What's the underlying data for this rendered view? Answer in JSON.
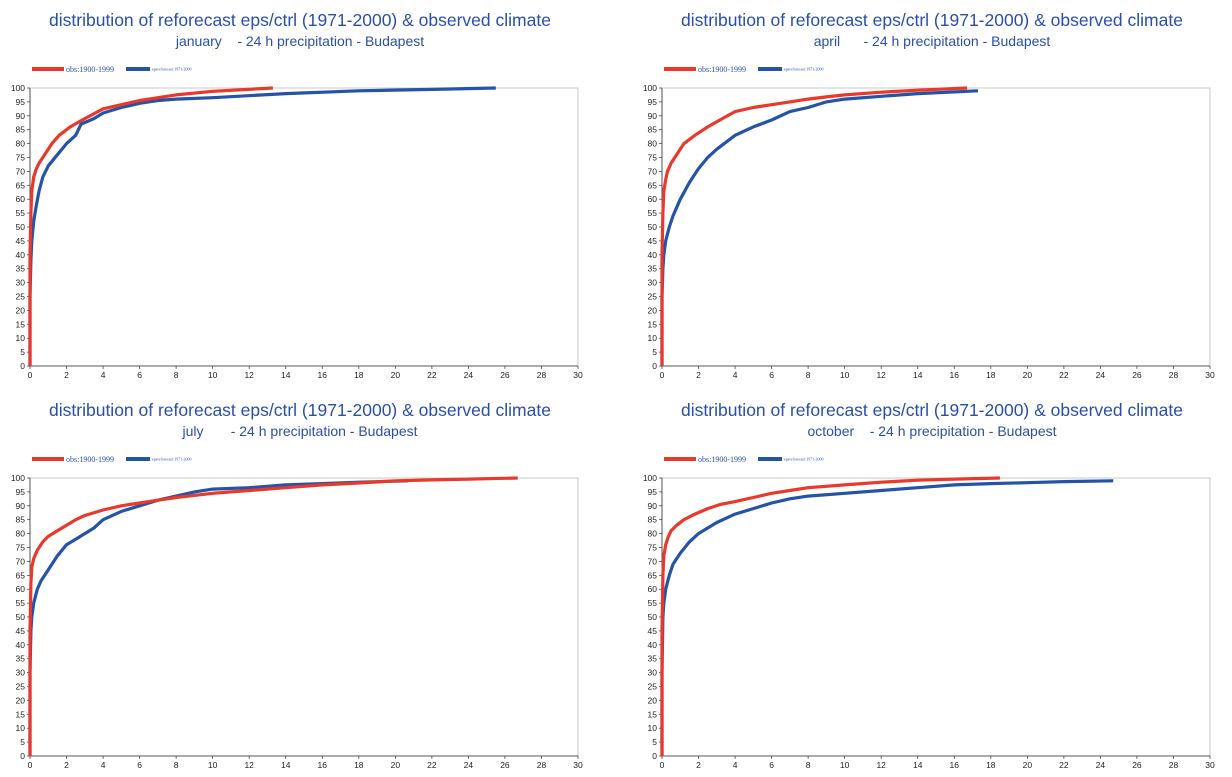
{
  "chart_data": [
    {
      "type": "line",
      "title": "distribution of reforecast eps/ctrl (1971-2000) & observed climate",
      "subtitle": "january    - 24 h precipitation - Budapest",
      "xlabel": "",
      "ylabel": "",
      "xlim": [
        0,
        30
      ],
      "ylim": [
        0,
        100
      ],
      "xticks": [
        "0",
        "2",
        "4",
        "6",
        "8",
        "10",
        "12",
        "14",
        "16",
        "18",
        "20",
        "22",
        "24",
        "26",
        "28",
        "30"
      ],
      "yticks": [
        "0",
        "5",
        "10",
        "15",
        "20",
        "25",
        "30",
        "35",
        "40",
        "45",
        "50",
        "55",
        "60",
        "65",
        "70",
        "75",
        "80",
        "85",
        "90",
        "95",
        "100"
      ],
      "legend_position": "top-left",
      "series": [
        {
          "name": "obs:1900-1999",
          "color": "#e8392b",
          "x": [
            0,
            0,
            0.05,
            0.1,
            0.2,
            0.35,
            0.5,
            0.8,
            1.2,
            1.6,
            2.2,
            3,
            4,
            5,
            6,
            7,
            8,
            10,
            13.3
          ],
          "y": [
            0,
            40,
            55,
            63,
            68,
            71,
            73,
            76,
            80,
            83,
            86,
            89,
            92.5,
            94,
            95.5,
            96.5,
            97.5,
            98.8,
            100
          ]
        },
        {
          "name": "epsreforecast:1971-2000",
          "color": "#2453a8",
          "x": [
            0,
            0,
            0.05,
            0.1,
            0.2,
            0.35,
            0.5,
            0.7,
            1,
            1.5,
            2,
            2.5,
            2.8,
            3.5,
            4,
            5,
            6,
            7,
            8,
            10,
            14,
            18,
            22,
            25.5
          ],
          "y": [
            0,
            25,
            38,
            45,
            52,
            58,
            63,
            68,
            72,
            76,
            80,
            83,
            87,
            89,
            91,
            93,
            94.5,
            95.5,
            96,
            96.5,
            98,
            99,
            99.5,
            100
          ]
        }
      ]
    },
    {
      "type": "line",
      "title": "distribution of reforecast eps/ctrl (1971-2000) & observed climate",
      "subtitle": "april      - 24 h precipitation - Budapest",
      "xlabel": "",
      "ylabel": "",
      "xlim": [
        0,
        30
      ],
      "ylim": [
        0,
        100
      ],
      "xticks": [
        "0",
        "2",
        "4",
        "6",
        "8",
        "10",
        "12",
        "14",
        "16",
        "18",
        "20",
        "22",
        "24",
        "26",
        "28",
        "30"
      ],
      "yticks": [
        "0",
        "5",
        "10",
        "15",
        "20",
        "25",
        "30",
        "35",
        "40",
        "45",
        "50",
        "55",
        "60",
        "65",
        "70",
        "75",
        "80",
        "85",
        "90",
        "95",
        "100"
      ],
      "legend_position": "top-left",
      "series": [
        {
          "name": "obs:1900-1999",
          "color": "#e8392b",
          "x": [
            0,
            0,
            0.05,
            0.1,
            0.2,
            0.3,
            0.5,
            0.8,
            1.2,
            1.8,
            2.5,
            3.3,
            4,
            5,
            6,
            7,
            8,
            9,
            10,
            12,
            14,
            16.7
          ],
          "y": [
            0,
            40,
            55,
            63,
            67,
            70,
            73,
            76,
            80,
            83,
            86,
            89,
            91.5,
            93,
            94,
            95,
            96,
            96.8,
            97.5,
            98.5,
            99.2,
            100
          ]
        },
        {
          "name": "epsreforecast:1971-2000",
          "color": "#2453a8",
          "x": [
            0,
            0,
            0.05,
            0.1,
            0.2,
            0.4,
            0.6,
            1,
            1.5,
            2,
            2.5,
            3,
            4,
            5,
            6,
            7,
            8,
            9,
            10,
            12,
            14,
            17.3
          ],
          "y": [
            0,
            25,
            35,
            40,
            45,
            50,
            54,
            60,
            66,
            71,
            75,
            78,
            83,
            86,
            88.5,
            91.5,
            93,
            95,
            96,
            97,
            98,
            99
          ]
        }
      ]
    },
    {
      "type": "line",
      "title": "distribution of reforecast eps/ctrl (1971-2000) & observed climate",
      "subtitle": "july       - 24 h precipitation - Budapest",
      "xlabel": "",
      "ylabel": "",
      "xlim": [
        0,
        30
      ],
      "ylim": [
        0,
        100
      ],
      "xticks": [
        "0",
        "2",
        "4",
        "6",
        "8",
        "10",
        "12",
        "14",
        "16",
        "18",
        "20",
        "22",
        "24",
        "26",
        "28",
        "30"
      ],
      "yticks": [
        "0",
        "5",
        "10",
        "15",
        "20",
        "25",
        "30",
        "35",
        "40",
        "45",
        "50",
        "55",
        "60",
        "65",
        "70",
        "75",
        "80",
        "85",
        "90",
        "95",
        "100"
      ],
      "legend_position": "top-left",
      "series": [
        {
          "name": "obs:1900-1999",
          "color": "#e8392b",
          "x": [
            0,
            0,
            0.05,
            0.1,
            0.2,
            0.4,
            0.7,
            1,
            1.5,
            2,
            2.5,
            3,
            4,
            5,
            6,
            7,
            8,
            10,
            12,
            14,
            16,
            18,
            20,
            22,
            24,
            26.7
          ],
          "y": [
            0,
            45,
            62,
            68,
            71,
            74,
            77,
            79,
            81,
            83,
            85,
            86.5,
            88.5,
            90,
            91,
            92,
            93,
            94.5,
            95.5,
            96.5,
            97.5,
            98.2,
            99,
            99.3,
            99.6,
            100
          ]
        },
        {
          "name": "epsreforecast:1971-2000",
          "color": "#2453a8",
          "x": [
            0,
            0,
            0.05,
            0.1,
            0.2,
            0.4,
            0.6,
            1,
            1.5,
            2,
            2.5,
            3,
            3.5,
            4,
            5,
            6,
            7,
            8,
            9,
            10,
            12,
            14,
            16,
            18,
            20.7
          ],
          "y": [
            0,
            30,
            45,
            50,
            55,
            60,
            63,
            67,
            72,
            76,
            78,
            80,
            82,
            85,
            88,
            90,
            92,
            93.5,
            95,
            96,
            96.5,
            97.5,
            98,
            98.5,
            99
          ]
        }
      ]
    },
    {
      "type": "line",
      "title": "distribution of reforecast eps/ctrl (1971-2000) & observed climate",
      "subtitle": "october    - 24 h precipitation - Budapest",
      "xlabel": "",
      "ylabel": "",
      "xlim": [
        0,
        30
      ],
      "ylim": [
        0,
        100
      ],
      "xticks": [
        "0",
        "2",
        "4",
        "6",
        "8",
        "10",
        "12",
        "14",
        "16",
        "18",
        "20",
        "22",
        "24",
        "26",
        "28",
        "30"
      ],
      "yticks": [
        "0",
        "5",
        "10",
        "15",
        "20",
        "25",
        "30",
        "35",
        "40",
        "45",
        "50",
        "55",
        "60",
        "65",
        "70",
        "75",
        "80",
        "85",
        "90",
        "95",
        "100"
      ],
      "legend_position": "top-left",
      "series": [
        {
          "name": "obs:1900-1999",
          "color": "#e8392b",
          "x": [
            0,
            0,
            0.05,
            0.1,
            0.2,
            0.35,
            0.5,
            0.8,
            1.2,
            1.8,
            2.5,
            3.2,
            4,
            5,
            6,
            7,
            8,
            10,
            12,
            14,
            16,
            18.5
          ],
          "y": [
            0,
            45,
            65,
            72,
            76,
            79,
            81,
            83,
            85,
            87,
            89,
            90.5,
            91.5,
            93,
            94.5,
            95.5,
            96.5,
            97.5,
            98.5,
            99.2,
            99.6,
            100
          ]
        },
        {
          "name": "epsreforecast:1971-2000",
          "color": "#2453a8",
          "x": [
            0,
            0,
            0.05,
            0.1,
            0.2,
            0.4,
            0.6,
            1,
            1.5,
            2,
            2.5,
            3,
            4,
            5,
            6,
            7,
            8,
            10,
            12,
            14,
            16,
            18,
            20,
            22,
            24.7
          ],
          "y": [
            0,
            30,
            50,
            55,
            60,
            65,
            69,
            73,
            77,
            80,
            82,
            84,
            87,
            89,
            91,
            92.5,
            93.5,
            94.5,
            95.5,
            96.5,
            97.5,
            98,
            98.3,
            98.7,
            99
          ]
        }
      ]
    }
  ]
}
